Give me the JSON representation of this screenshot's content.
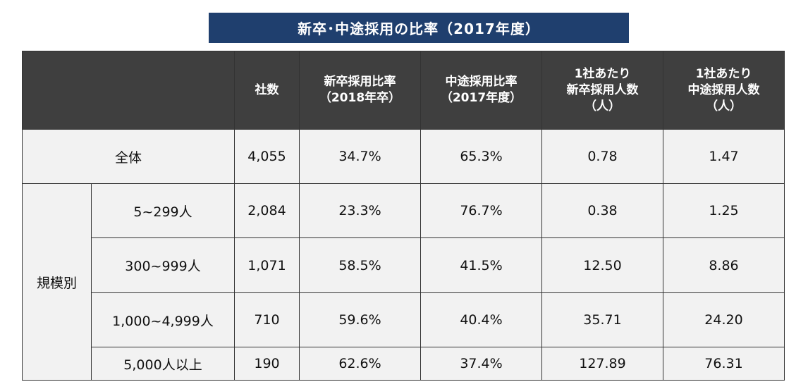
{
  "title": "新卒･中途採用の比率（2017年度）",
  "chart_data": {
    "type": "table",
    "title": "新卒･中途採用の比率（2017年度）",
    "columns": [
      {
        "lines": [
          ""
        ]
      },
      {
        "lines": [
          "社数"
        ]
      },
      {
        "lines": [
          "新卒採用比率",
          "（2018年卒）"
        ]
      },
      {
        "lines": [
          "中途採用比率",
          "（2017年度）"
        ]
      },
      {
        "lines": [
          "1社あたり",
          "新卒採用人数",
          "（人）"
        ]
      },
      {
        "lines": [
          "1社あたり",
          "中途採用人数",
          "（人）"
        ]
      }
    ],
    "total_row": {
      "label": "全体",
      "companies": "4,055",
      "new_grad_ratio": "34.7%",
      "mid_career_ratio": "65.3%",
      "new_grad_per_company": "0.78",
      "mid_career_per_company": "1.47"
    },
    "group_label": "規模別",
    "rows": [
      {
        "label": "5~299人",
        "companies": "2,084",
        "new_grad_ratio": "23.3%",
        "mid_career_ratio": "76.7%",
        "new_grad_per_company": "0.38",
        "mid_career_per_company": "1.25"
      },
      {
        "label": "300~999人",
        "companies": "1,071",
        "new_grad_ratio": "58.5%",
        "mid_career_ratio": "41.5%",
        "new_grad_per_company": "12.50",
        "mid_career_per_company": "8.86"
      },
      {
        "label": "1,000~4,999人",
        "companies": "710",
        "new_grad_ratio": "59.6%",
        "mid_career_ratio": "40.4%",
        "new_grad_per_company": "35.71",
        "mid_career_per_company": "24.20"
      },
      {
        "label": "5,000人以上",
        "companies": "190",
        "new_grad_ratio": "62.6%",
        "mid_career_ratio": "37.4%",
        "new_grad_per_company": "127.89",
        "mid_career_per_company": "76.31"
      }
    ]
  },
  "colors": {
    "title_bg": "#1f3f6e",
    "header_bg": "#3f3f3f",
    "cell_bg": "#f2f2f2",
    "border": "#333333"
  }
}
